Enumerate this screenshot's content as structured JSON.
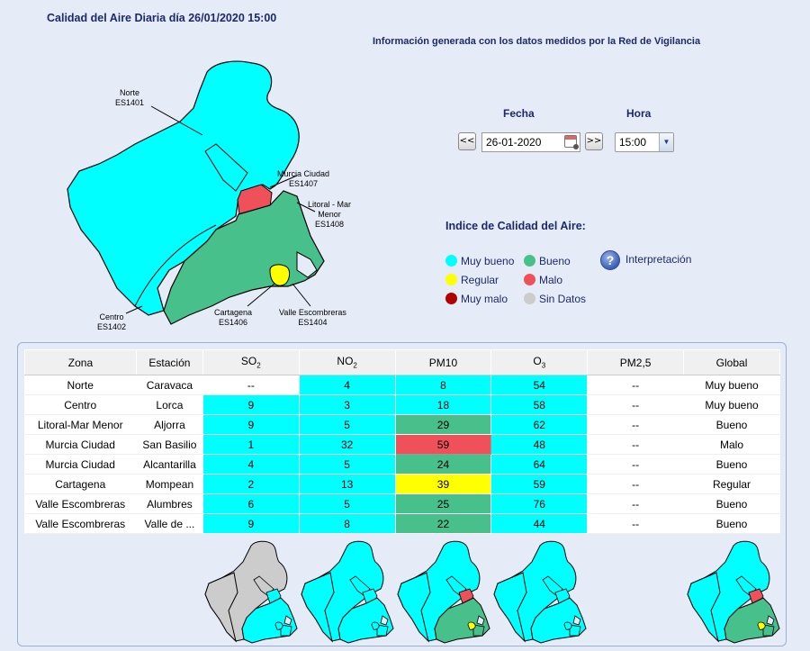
{
  "header": {
    "title": "Calidad del Aire Diaria día 26/01/2020 15:00",
    "info": "Información generada con los datos medidos por la Red de Vigilancia"
  },
  "map_labels": [
    {
      "name": "Norte",
      "code": "ES1401"
    },
    {
      "name": "Murcia Ciudad",
      "code": "ES1407"
    },
    {
      "name": "Litoral - Mar Menor",
      "code": "ES1408"
    },
    {
      "name": "Cartagena",
      "code": "ES1406"
    },
    {
      "name": "Valle Escombreras",
      "code": "ES1404"
    },
    {
      "name": "Centro",
      "code": "ES1402"
    }
  ],
  "controls": {
    "fecha_label": "Fecha",
    "hora_label": "Hora",
    "prev_label": "<<",
    "next_label": ">>",
    "fecha_value": "26-01-2020",
    "hora_value": "15:00"
  },
  "legend": {
    "title": "Indice de Calidad del Aire:",
    "items": [
      {
        "label": "Muy bueno",
        "color": "#00ffff"
      },
      {
        "label": "Bueno",
        "color": "#48c08c"
      },
      {
        "label": "Regular",
        "color": "#ffff00"
      },
      {
        "label": "Malo",
        "color": "#f0505a"
      },
      {
        "label": "Muy malo",
        "color": "#b00000"
      },
      {
        "label": "Sin Datos",
        "color": "#cccccc"
      }
    ],
    "help_label": "Interpretación"
  },
  "table": {
    "headers": [
      "Zona",
      "Estación",
      "SO",
      "NO",
      "PM10",
      "O",
      "PM2,5",
      "Global"
    ],
    "header_subs": [
      "",
      "",
      "2",
      "2",
      "",
      "3",
      "",
      ""
    ],
    "rows": [
      {
        "zona": "Norte",
        "estacion": "Caravaca",
        "so2": "--",
        "no2": "4",
        "pm10": "8",
        "o3": "54",
        "pm25": "--",
        "global": "Muy bueno",
        "colors": {
          "so2": "",
          "no2": "#00ffff",
          "pm10": "#00ffff",
          "o3": "#00ffff"
        }
      },
      {
        "zona": "Centro",
        "estacion": "Lorca",
        "so2": "9",
        "no2": "3",
        "pm10": "18",
        "o3": "58",
        "pm25": "--",
        "global": "Muy bueno",
        "colors": {
          "so2": "#00ffff",
          "no2": "#00ffff",
          "pm10": "#00ffff",
          "o3": "#00ffff"
        }
      },
      {
        "zona": "Litoral-Mar Menor",
        "estacion": "Aljorra",
        "so2": "9",
        "no2": "5",
        "pm10": "29",
        "o3": "62",
        "pm25": "--",
        "global": "Bueno",
        "colors": {
          "so2": "#00ffff",
          "no2": "#00ffff",
          "pm10": "#48c08c",
          "o3": "#00ffff"
        }
      },
      {
        "zona": "Murcia Ciudad",
        "estacion": "San Basilio",
        "so2": "1",
        "no2": "32",
        "pm10": "59",
        "o3": "48",
        "pm25": "--",
        "global": "Malo",
        "colors": {
          "so2": "#00ffff",
          "no2": "#00ffff",
          "pm10": "#f0505a",
          "o3": "#00ffff"
        }
      },
      {
        "zona": "Murcia Ciudad",
        "estacion": "Alcantarilla",
        "so2": "4",
        "no2": "5",
        "pm10": "24",
        "o3": "64",
        "pm25": "--",
        "global": "Bueno",
        "colors": {
          "so2": "#00ffff",
          "no2": "#00ffff",
          "pm10": "#48c08c",
          "o3": "#00ffff"
        }
      },
      {
        "zona": "Cartagena",
        "estacion": "Mompean",
        "so2": "2",
        "no2": "13",
        "pm10": "39",
        "o3": "59",
        "pm25": "--",
        "global": "Regular",
        "colors": {
          "so2": "#00ffff",
          "no2": "#00ffff",
          "pm10": "#ffff00",
          "o3": "#00ffff"
        }
      },
      {
        "zona": "Valle Escombreras",
        "estacion": "Alumbres",
        "so2": "6",
        "no2": "5",
        "pm10": "25",
        "o3": "76",
        "pm25": "--",
        "global": "Bueno",
        "colors": {
          "so2": "#00ffff",
          "no2": "#00ffff",
          "pm10": "#48c08c",
          "o3": "#00ffff"
        }
      },
      {
        "zona": "Valle Escombreras",
        "estacion": "Valle de ...",
        "so2": "9",
        "no2": "8",
        "pm10": "22",
        "o3": "44",
        "pm25": "--",
        "global": "Bueno",
        "colors": {
          "so2": "#00ffff",
          "no2": "#00ffff",
          "pm10": "#48c08c",
          "o3": "#00ffff"
        }
      }
    ]
  },
  "thumbnails": [
    {
      "pollutant": "SO2",
      "zone_colors": {
        "norte": "#cccccc",
        "centro": "#cccccc",
        "murcia": "#00ffff",
        "litoral": "#00ffff",
        "cartagena": "#00ffff",
        "valle": "#00ffff"
      }
    },
    {
      "pollutant": "NO2",
      "zone_colors": {
        "norte": "#00ffff",
        "centro": "#00ffff",
        "murcia": "#00ffff",
        "litoral": "#00ffff",
        "cartagena": "#00ffff",
        "valle": "#00ffff"
      }
    },
    {
      "pollutant": "PM10",
      "zone_colors": {
        "norte": "#00ffff",
        "centro": "#00ffff",
        "murcia": "#f0505a",
        "litoral": "#48c08c",
        "cartagena": "#ffff00",
        "valle": "#48c08c"
      }
    },
    {
      "pollutant": "O3",
      "zone_colors": {
        "norte": "#00ffff",
        "centro": "#00ffff",
        "murcia": "#00ffff",
        "litoral": "#00ffff",
        "cartagena": "#00ffff",
        "valle": "#00ffff"
      }
    },
    {
      "pollutant": "Global",
      "zone_colors": {
        "norte": "#00ffff",
        "centro": "#00ffff",
        "murcia": "#f0505a",
        "litoral": "#48c08c",
        "cartagena": "#ffff00",
        "valle": "#48c08c"
      }
    }
  ]
}
